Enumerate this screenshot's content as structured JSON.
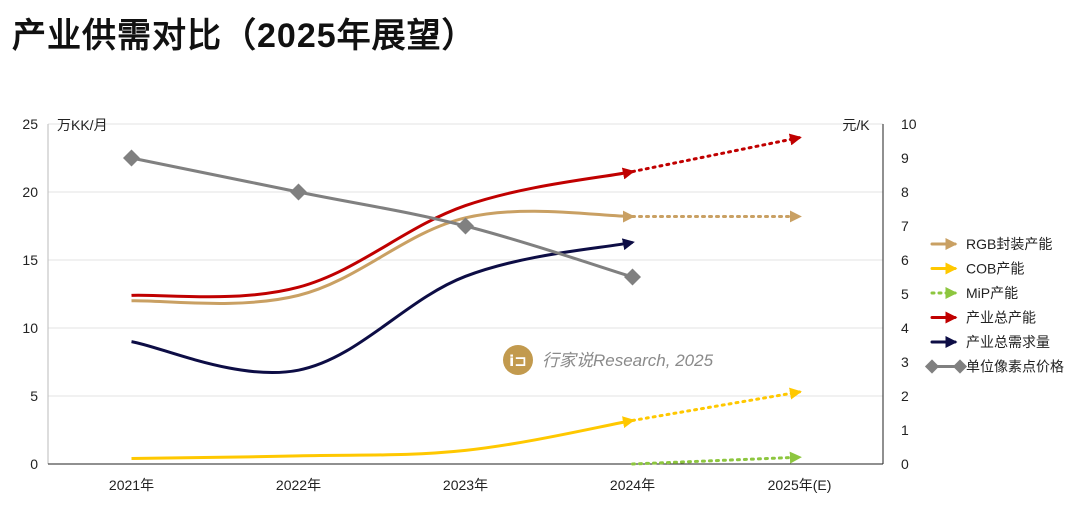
{
  "title": "产业供需对比（2025年展望）",
  "watermark": "行家说Research, 2025",
  "chart_data": {
    "type": "line",
    "title": "产业供需对比（2025年展望）",
    "categories": [
      "2021年",
      "2022年",
      "2023年",
      "2024年",
      "2025年(E)"
    ],
    "y_left": {
      "label": "万KK/月",
      "range": [
        0,
        25
      ],
      "ticks": [
        0,
        5,
        10,
        15,
        20,
        25
      ]
    },
    "y_right": {
      "label": "元/K",
      "range": [
        0,
        10
      ],
      "ticks": [
        0,
        1,
        2,
        3,
        4,
        5,
        6,
        7,
        8,
        9,
        10
      ]
    },
    "grid": true,
    "legend_position": "right",
    "note": "dotted segments = 2025 forecast",
    "series": [
      {
        "name": "RGB封装产能",
        "axis": "left",
        "color": "#C9A063",
        "values": [
          12.0,
          12.4,
          18.1,
          18.2,
          18.2
        ]
      },
      {
        "name": "COB产能",
        "axis": "left",
        "color": "#FFC800",
        "values": [
          0.4,
          0.6,
          1.0,
          3.2,
          5.3
        ]
      },
      {
        "name": "MiP产能",
        "axis": "left",
        "color": "#8DC63F",
        "values": [
          null,
          null,
          null,
          0,
          0.5
        ]
      },
      {
        "name": "产业总产能",
        "axis": "left",
        "color": "#C00000",
        "values": [
          12.4,
          13.0,
          19.0,
          21.5,
          24.0
        ]
      },
      {
        "name": "产业总需求量",
        "axis": "left",
        "color": "#0D0D45",
        "values": [
          9.0,
          6.9,
          13.8,
          16.3,
          null
        ]
      },
      {
        "name": "单位像素点价格",
        "axis": "right",
        "color": "#808080",
        "values": [
          9.0,
          8.0,
          7.0,
          5.5,
          null
        ]
      }
    ]
  }
}
